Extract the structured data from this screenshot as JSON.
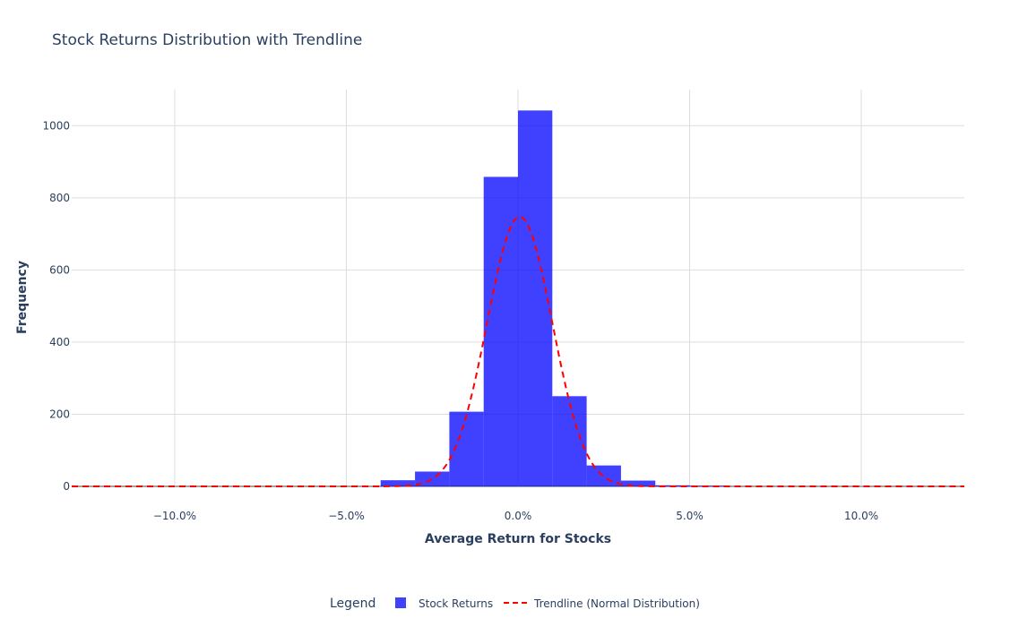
{
  "chart_data": {
    "type": "bar",
    "title": "Stock Returns Distribution with Trendline",
    "xlabel": "Average Return for Stocks",
    "ylabel": "Frequency",
    "xlim": [
      -0.13,
      0.13
    ],
    "ylim": [
      0,
      1100
    ],
    "x_ticks": [
      -0.1,
      -0.05,
      0,
      0.05,
      0.1
    ],
    "x_tick_labels": [
      "−10.0%",
      "−5.0%",
      "0.0%",
      "5.0%",
      "10.0%"
    ],
    "y_ticks": [
      0,
      200,
      400,
      600,
      800,
      1000
    ],
    "y_tick_labels": [
      "0",
      "200",
      "400",
      "600",
      "800",
      "1000"
    ],
    "grid": true,
    "legend_placement": "bottom-center",
    "legend_title": "Legend",
    "series": [
      {
        "name": "Stock Returns",
        "kind": "histogram",
        "color": "#0000ff",
        "opacity": 0.75,
        "bins": [
          {
            "start": -0.04,
            "end": -0.03,
            "count": 17
          },
          {
            "start": -0.03,
            "end": -0.02,
            "count": 41
          },
          {
            "start": -0.02,
            "end": -0.01,
            "count": 207
          },
          {
            "start": -0.01,
            "end": 0.0,
            "count": 858
          },
          {
            "start": 0.0,
            "end": 0.01,
            "count": 1042
          },
          {
            "start": 0.01,
            "end": 0.02,
            "count": 250
          },
          {
            "start": 0.02,
            "end": 0.03,
            "count": 58
          },
          {
            "start": 0.03,
            "end": 0.04,
            "count": 16
          },
          {
            "start": 0.04,
            "end": 0.05,
            "count": 3
          },
          {
            "start": 0.05,
            "end": 0.06,
            "count": 2
          }
        ]
      },
      {
        "name": "Trendline (Normal Distribution)",
        "kind": "line",
        "color": "#ff0000",
        "dash": "dash",
        "distribution": {
          "mean": 0.0005,
          "std": 0.0095,
          "peak": 748
        }
      }
    ]
  }
}
